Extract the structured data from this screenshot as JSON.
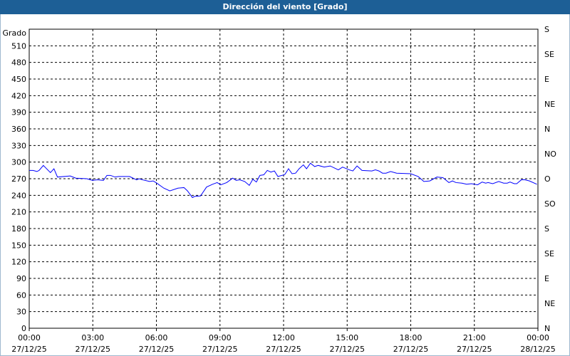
{
  "title": "Dirección del viento [Grado]",
  "chart_data": {
    "type": "line",
    "title": "Dirección del viento [Grado]",
    "ylabel": "Grado",
    "ylim": [
      0,
      540
    ],
    "y_ticks": [
      0,
      30,
      60,
      90,
      120,
      150,
      180,
      210,
      240,
      270,
      300,
      330,
      360,
      390,
      420,
      450,
      480,
      510
    ],
    "right_ticks": [
      {
        "value": 0,
        "label": "N"
      },
      {
        "value": 45,
        "label": "NE"
      },
      {
        "value": 90,
        "label": "E"
      },
      {
        "value": 135,
        "label": "SE"
      },
      {
        "value": 180,
        "label": "S"
      },
      {
        "value": 225,
        "label": "SO"
      },
      {
        "value": 270,
        "label": "O"
      },
      {
        "value": 315,
        "label": "NO"
      },
      {
        "value": 360,
        "label": "N"
      },
      {
        "value": 405,
        "label": "NE"
      },
      {
        "value": 450,
        "label": "E"
      },
      {
        "value": 495,
        "label": "SE"
      },
      {
        "value": 540,
        "label": "S"
      }
    ],
    "x_ticks": [
      {
        "time": "00:00",
        "date": "27/12/25"
      },
      {
        "time": "03:00",
        "date": "27/12/25"
      },
      {
        "time": "06:00",
        "date": "27/12/25"
      },
      {
        "time": "09:00",
        "date": "27/12/25"
      },
      {
        "time": "12:00",
        "date": "27/12/25"
      },
      {
        "time": "15:00",
        "date": "27/12/25"
      },
      {
        "time": "18:00",
        "date": "27/12/25"
      },
      {
        "time": "21:00",
        "date": "27/12/25"
      },
      {
        "time": "00:00",
        "date": "28/12/25"
      }
    ],
    "xlim": [
      "27/12/25 00:00",
      "28/12/25 00:00"
    ],
    "grid": true,
    "series": [
      {
        "color": "#0000ff",
        "points": [
          [
            "00:00",
            285
          ],
          [
            "00:11",
            285
          ],
          [
            "00:22",
            283
          ],
          [
            "00:28",
            285
          ],
          [
            "00:40",
            294
          ],
          [
            "01:00",
            281
          ],
          [
            "01:10",
            288
          ],
          [
            "01:20",
            273
          ],
          [
            "01:56",
            275
          ],
          [
            "02:12",
            271
          ],
          [
            "02:43",
            270
          ],
          [
            "02:59",
            267
          ],
          [
            "03:13",
            268
          ],
          [
            "03:30",
            267
          ],
          [
            "03:40",
            276
          ],
          [
            "03:50",
            276
          ],
          [
            "04:03",
            273
          ],
          [
            "04:13",
            274
          ],
          [
            "04:27",
            274
          ],
          [
            "04:44",
            274
          ],
          [
            "05:04",
            268
          ],
          [
            "05:11",
            270
          ],
          [
            "05:21",
            268
          ],
          [
            "05:41",
            265
          ],
          [
            "05:51",
            266
          ],
          [
            "06:01",
            262
          ],
          [
            "06:21",
            253
          ],
          [
            "06:38",
            248
          ],
          [
            "07:01",
            253
          ],
          [
            "07:18",
            254
          ],
          [
            "07:28",
            248
          ],
          [
            "07:42",
            236
          ],
          [
            "07:48",
            238
          ],
          [
            "08:05",
            239
          ],
          [
            "08:22",
            255
          ],
          [
            "08:39",
            260
          ],
          [
            "08:52",
            263
          ],
          [
            "09:02",
            259
          ],
          [
            "09:19",
            263
          ],
          [
            "09:36",
            271
          ],
          [
            "09:46",
            267
          ],
          [
            "09:56",
            268
          ],
          [
            "10:10",
            265
          ],
          [
            "10:23",
            258
          ],
          [
            "10:33",
            269
          ],
          [
            "10:43",
            264
          ],
          [
            "10:53",
            276
          ],
          [
            "11:04",
            277
          ],
          [
            "11:14",
            285
          ],
          [
            "11:24",
            282
          ],
          [
            "11:34",
            284
          ],
          [
            "11:44",
            274
          ],
          [
            "12:01",
            277
          ],
          [
            "12:04",
            278
          ],
          [
            "12:14",
            288
          ],
          [
            "12:24",
            279
          ],
          [
            "12:34",
            280
          ],
          [
            "12:44",
            288
          ],
          [
            "12:56",
            295
          ],
          [
            "13:05",
            288
          ],
          [
            "13:16",
            298
          ],
          [
            "13:28",
            292
          ],
          [
            "13:38",
            294
          ],
          [
            "13:55",
            291
          ],
          [
            "14:12",
            293
          ],
          [
            "14:35",
            286
          ],
          [
            "14:47",
            291
          ],
          [
            "15:06",
            286
          ],
          [
            "15:16",
            284
          ],
          [
            "15:28",
            293
          ],
          [
            "15:42",
            285
          ],
          [
            "16:10",
            284
          ],
          [
            "16:20",
            286
          ],
          [
            "16:30",
            284
          ],
          [
            "16:40",
            280
          ],
          [
            "16:50",
            280
          ],
          [
            "17:03",
            283
          ],
          [
            "17:20",
            280
          ],
          [
            "18:00",
            279
          ],
          [
            "18:21",
            274
          ],
          [
            "18:37",
            265
          ],
          [
            "18:54",
            266
          ],
          [
            "19:14",
            273
          ],
          [
            "19:31",
            272
          ],
          [
            "19:48",
            263
          ],
          [
            "19:58",
            266
          ],
          [
            "20:08",
            263
          ],
          [
            "20:25",
            262
          ],
          [
            "20:38",
            260
          ],
          [
            "20:52",
            261
          ],
          [
            "21:09",
            259
          ],
          [
            "21:22",
            264
          ],
          [
            "21:32",
            262
          ],
          [
            "21:39",
            263
          ],
          [
            "21:52",
            261
          ],
          [
            "22:09",
            265
          ],
          [
            "22:23",
            262
          ],
          [
            "22:33",
            262
          ],
          [
            "22:41",
            264
          ],
          [
            "22:53",
            261
          ],
          [
            "23:00",
            261
          ],
          [
            "23:13",
            268
          ],
          [
            "23:23",
            268
          ],
          [
            "23:36",
            266
          ],
          [
            "23:57",
            260
          ]
        ]
      }
    ]
  }
}
